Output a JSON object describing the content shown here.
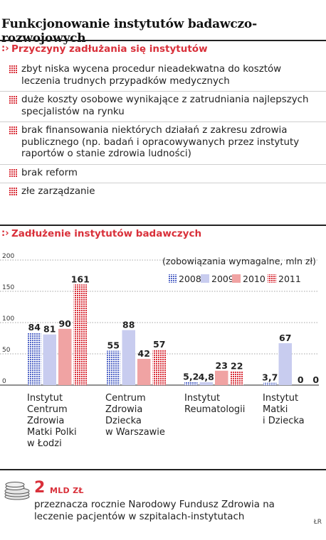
{
  "title": "Funkcjonowanie instytutów badawczo-rozwojowych",
  "reasons_section": {
    "marker": ":›",
    "heading": "Przyczyny zadłużania się instytutów",
    "items": [
      "zbyt niska wycena procedur nieadekwatna do kosztów leczenia trudnych przypadków medycznych",
      "duże koszty osobowe wynikające z zatrudniania najlepszych specjalistów na rynku",
      "brak finansowania niektórych działań z zakresu zdrowia publicznego (np. badań i opracowywanych przez instytuty raportów o stanie zdrowia ludności)",
      "brak reform",
      "złe zarządzanie"
    ]
  },
  "debt_section": {
    "marker": ":›",
    "heading": "Zadłużenie instytutów badawczych"
  },
  "colors": {
    "accent_red": "#d9303a",
    "s2008": "#5468c7",
    "s2009": "#c8ccef",
    "s2010": "#f0a3a3",
    "s2011": "#d9303a"
  },
  "chart_data": {
    "type": "bar",
    "title": "",
    "unit_note": "(zobowiązania wymagalne, mln zł)",
    "xlabel": "",
    "ylabel": "",
    "ylim": [
      0,
      200
    ],
    "yticks": [
      0,
      50,
      100,
      150,
      200
    ],
    "ytick_labels": [
      "0",
      "50",
      "100",
      "150",
      "200"
    ],
    "grid": true,
    "legend_position": "top-right",
    "categories": [
      [
        "Instytut",
        "Centrum",
        "Zdrowia",
        "Matki Polki",
        "w Łodzi"
      ],
      [
        "Centrum",
        "Zdrowia",
        "Dziecka",
        "w Warszawie"
      ],
      [
        "Instytut",
        "Reumatologii"
      ],
      [
        "Instytut",
        "Matki",
        "i Dziecka"
      ]
    ],
    "series": [
      {
        "name": "2008",
        "pattern": "dots",
        "color": "#5468c7",
        "values": [
          84,
          55,
          5.2,
          3.7
        ],
        "labels": [
          "84",
          "55",
          "5,2",
          "3,7"
        ]
      },
      {
        "name": "2009",
        "pattern": "solid",
        "color": "#c8ccef",
        "values": [
          81,
          88,
          4.8,
          67
        ],
        "labels": [
          "81",
          "88",
          "4,8",
          "67"
        ]
      },
      {
        "name": "2010",
        "pattern": "solid",
        "color": "#f0a3a3",
        "values": [
          90,
          42,
          23,
          0
        ],
        "labels": [
          "90",
          "42",
          "23",
          "0"
        ]
      },
      {
        "name": "2011",
        "pattern": "dots",
        "color": "#d9303a",
        "values": [
          161,
          57,
          22,
          0
        ],
        "labels": [
          "161",
          "57",
          "22",
          "0"
        ]
      }
    ]
  },
  "fund_note": {
    "value": "2",
    "unit": "MLD ZŁ",
    "text": "przeznacza rocznie Narodowy Fundusz Zdrowia na leczenie pacjentów w szpitalach-instytutach"
  },
  "credit": "ŁR"
}
